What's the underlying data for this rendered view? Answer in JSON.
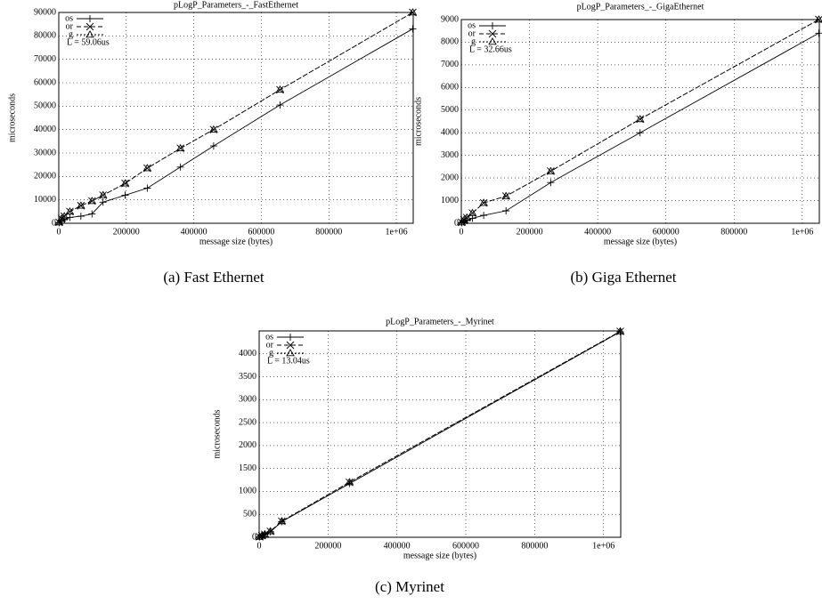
{
  "chart_data": [
    {
      "type": "line",
      "title": "pLogP_Parameters_-_FastEthernet",
      "caption": "(a) Fast Ethernet",
      "xlabel": "message size (bytes)",
      "ylabel": "microseconds",
      "annotation": "L = 59.06us",
      "grid": true,
      "x": [
        1024,
        8192,
        16384,
        32768,
        65536,
        98304,
        131072,
        196608,
        262144,
        360448,
        458752,
        655360,
        1048576
      ],
      "xlim": [
        0,
        1050000
      ],
      "xticks": [
        0,
        200000,
        400000,
        600000,
        800000,
        {
          "value": 1000000,
          "label": "1e+06"
        }
      ],
      "ylim": [
        0,
        90000
      ],
      "yticks": [
        0,
        10000,
        20000,
        30000,
        40000,
        50000,
        60000,
        70000,
        80000,
        90000
      ],
      "series": [
        {
          "name": "os",
          "color": "#000000",
          "dash": "solid",
          "marker": "plus",
          "values": [
            200,
            800,
            1500,
            2500,
            3000,
            4000,
            9000,
            12000,
            15000,
            24000,
            33000,
            50500,
            83000
          ]
        },
        {
          "name": "or",
          "color": "#000000",
          "dash": "dashed",
          "marker": "cross",
          "values": [
            400,
            2000,
            3000,
            5000,
            7500,
            9500,
            12000,
            17000,
            23500,
            32000,
            40000,
            57000,
            90000
          ]
        },
        {
          "name": "g",
          "color": "#000000",
          "dash": "dotted",
          "marker": "triangle",
          "values": [
            400,
            2000,
            3000,
            5000,
            7500,
            9500,
            12000,
            17000,
            23500,
            32000,
            40000,
            57000,
            90000
          ]
        }
      ]
    },
    {
      "type": "line",
      "title": "pLogP_Parameters_-_GigaEthernet",
      "caption": "(b) Giga Ethernet",
      "xlabel": "message size (bytes)",
      "ylabel": "microseconds",
      "annotation": "L = 32.66us",
      "grid": true,
      "x": [
        1024,
        8192,
        16384,
        32768,
        65536,
        131072,
        262144,
        524288,
        1048576
      ],
      "xlim": [
        0,
        1050000
      ],
      "xticks": [
        0,
        200000,
        400000,
        600000,
        800000,
        {
          "value": 1000000,
          "label": "1e+06"
        }
      ],
      "ylim": [
        0,
        9000
      ],
      "yticks": [
        0,
        1000,
        2000,
        3000,
        4000,
        5000,
        6000,
        7000,
        8000,
        9000
      ],
      "series": [
        {
          "name": "os",
          "color": "#000000",
          "dash": "solid",
          "marker": "plus",
          "values": [
            20,
            60,
            120,
            220,
            350,
            550,
            1800,
            4000,
            8400
          ]
        },
        {
          "name": "or",
          "color": "#000000",
          "dash": "dashed",
          "marker": "cross",
          "values": [
            40,
            150,
            250,
            450,
            900,
            1200,
            2300,
            4600,
            9000
          ]
        },
        {
          "name": "g",
          "color": "#000000",
          "dash": "dotted",
          "marker": "triangle",
          "values": [
            40,
            150,
            250,
            450,
            900,
            1200,
            2300,
            4600,
            9000
          ]
        }
      ]
    },
    {
      "type": "line",
      "title": "pLogP_Parameters_-_Myrinet",
      "caption": "(c) Myrinet",
      "xlabel": "message size (bytes)",
      "ylabel": "microseconds",
      "annotation": "L = 13.04us",
      "grid": true,
      "x": [
        1024,
        8192,
        16384,
        32768,
        65536,
        262144,
        1048576
      ],
      "xlim": [
        0,
        1050000
      ],
      "xticks": [
        0,
        200000,
        400000,
        600000,
        800000,
        {
          "value": 1000000,
          "label": "1e+06"
        }
      ],
      "ylim": [
        0,
        4500
      ],
      "yticks": [
        0,
        500,
        1000,
        1500,
        2000,
        2500,
        3000,
        3500,
        4000
      ],
      "series": [
        {
          "name": "os",
          "color": "#000000",
          "dash": "solid",
          "marker": "plus",
          "values": [
            5,
            30,
            60,
            120,
            340,
            1170,
            4480
          ]
        },
        {
          "name": "or",
          "color": "#000000",
          "dash": "dashed",
          "marker": "cross",
          "values": [
            10,
            35,
            65,
            130,
            350,
            1200,
            4490
          ]
        },
        {
          "name": "g",
          "color": "#000000",
          "dash": "dotted",
          "marker": "triangle",
          "values": [
            10,
            35,
            65,
            130,
            350,
            1200,
            4490
          ]
        }
      ]
    }
  ]
}
